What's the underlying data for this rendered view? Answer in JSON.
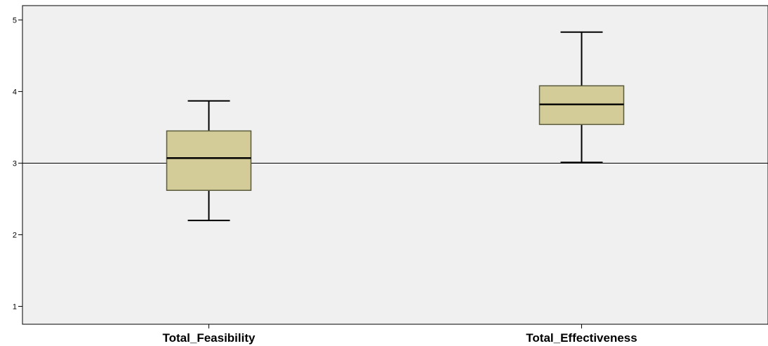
{
  "chart_data": {
    "type": "boxplot",
    "title": "",
    "xlabel": "",
    "ylabel": "",
    "ylim": [
      0.75,
      5.2
    ],
    "yticks": [
      1,
      2,
      3,
      4,
      5
    ],
    "reference_line": 3,
    "grid": false,
    "categories": [
      "Total_Feasibility",
      "Total_Effectiveness"
    ],
    "boxes": [
      {
        "category": "Total_Feasibility",
        "min": 2.2,
        "q1": 2.62,
        "median": 3.07,
        "q3": 3.45,
        "max": 3.87
      },
      {
        "category": "Total_Effectiveness",
        "min": 3.01,
        "q1": 3.54,
        "median": 3.82,
        "q3": 4.08,
        "max": 4.83
      }
    ],
    "colors": {
      "box_fill": "#d3cc99",
      "box_edge": "#5a5a3c",
      "plot_bg": "#f0f0f0",
      "line": "#000000"
    }
  }
}
